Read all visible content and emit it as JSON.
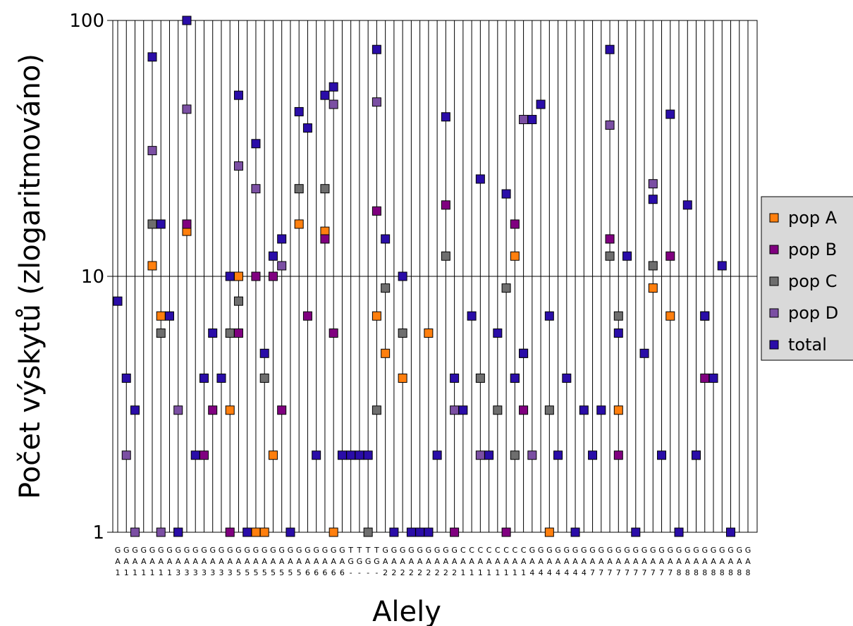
{
  "chart_data": {
    "type": "scatter",
    "title": "",
    "xlabel": "Alely",
    "ylabel": "Počet výskytů (zlogaritmováno)",
    "y_scale": "log",
    "ylim": [
      1,
      100
    ],
    "y_ticks": [
      "1",
      "10",
      "100"
    ],
    "grid": true,
    "legend_position": "right",
    "x_labels": [
      [
        "G",
        "A",
        "1"
      ],
      [
        "G",
        "A",
        "1"
      ],
      [
        "G",
        "A",
        "1"
      ],
      [
        "G",
        "A",
        "1"
      ],
      [
        "G",
        "A",
        "1"
      ],
      [
        "G",
        "A",
        "1"
      ],
      [
        "G",
        "A",
        "1"
      ],
      [
        "G",
        "A",
        "3"
      ],
      [
        "G",
        "A",
        "3"
      ],
      [
        "G",
        "A",
        "3"
      ],
      [
        "G",
        "A",
        "3"
      ],
      [
        "G",
        "A",
        "3"
      ],
      [
        "G",
        "A",
        "3"
      ],
      [
        "G",
        "A",
        "3"
      ],
      [
        "G",
        "A",
        "5"
      ],
      [
        "G",
        "A",
        "5"
      ],
      [
        "G",
        "A",
        "5"
      ],
      [
        "G",
        "A",
        "5"
      ],
      [
        "G",
        "A",
        "5"
      ],
      [
        "G",
        "A",
        "5"
      ],
      [
        "G",
        "A",
        "5"
      ],
      [
        "G",
        "A",
        "5"
      ],
      [
        "G",
        "A",
        "6"
      ],
      [
        "G",
        "A",
        "6"
      ],
      [
        "G",
        "A",
        "6"
      ],
      [
        "G",
        "A",
        "6"
      ],
      [
        "G",
        "A",
        "6"
      ],
      [
        "T",
        "G",
        "-"
      ],
      [
        "T",
        "G",
        "-"
      ],
      [
        "T",
        "G",
        "-"
      ],
      [
        "T",
        "G",
        "-"
      ],
      [
        "G",
        "A",
        "2"
      ],
      [
        "G",
        "A",
        "2"
      ],
      [
        "G",
        "A",
        "2"
      ],
      [
        "G",
        "A",
        "2"
      ],
      [
        "G",
        "A",
        "2"
      ],
      [
        "G",
        "A",
        "2"
      ],
      [
        "G",
        "A",
        "2"
      ],
      [
        "G",
        "A",
        "2"
      ],
      [
        "G",
        "A",
        "2"
      ],
      [
        "C",
        "A",
        "1"
      ],
      [
        "C",
        "A",
        "1"
      ],
      [
        "C",
        "A",
        "1"
      ],
      [
        "C",
        "A",
        "1"
      ],
      [
        "C",
        "A",
        "1"
      ],
      [
        "C",
        "A",
        "1"
      ],
      [
        "C",
        "A",
        "1"
      ],
      [
        "C",
        "A",
        "1"
      ],
      [
        "G",
        "A",
        "4"
      ],
      [
        "G",
        "A",
        "4"
      ],
      [
        "G",
        "A",
        "4"
      ],
      [
        "G",
        "A",
        "4"
      ],
      [
        "G",
        "A",
        "4"
      ],
      [
        "G",
        "A",
        "4"
      ],
      [
        "G",
        "A",
        "4"
      ],
      [
        "G",
        "A",
        "7"
      ],
      [
        "G",
        "A",
        "7"
      ],
      [
        "G",
        "A",
        "7"
      ],
      [
        "G",
        "A",
        "7"
      ],
      [
        "G",
        "A",
        "7"
      ],
      [
        "G",
        "A",
        "7"
      ],
      [
        "G",
        "A",
        "7"
      ],
      [
        "G",
        "A",
        "7"
      ],
      [
        "G",
        "A",
        "7"
      ],
      [
        "G",
        "A",
        "7"
      ],
      [
        "G",
        "A",
        "8"
      ],
      [
        "G",
        "A",
        "8"
      ],
      [
        "G",
        "A",
        "8"
      ],
      [
        "G",
        "A",
        "8"
      ],
      [
        "G",
        "A",
        "8"
      ],
      [
        "G",
        "A",
        "8"
      ],
      [
        "G",
        "A",
        "8"
      ],
      [
        "G",
        "A",
        "8"
      ],
      [
        "G",
        "A",
        "8"
      ]
    ],
    "series": [
      {
        "name": "pop A",
        "color": "#ff7f0e",
        "points": [
          [
            4,
            11
          ],
          [
            5,
            7
          ],
          [
            7,
            1
          ],
          [
            8,
            15
          ],
          [
            13,
            3
          ],
          [
            14,
            10
          ],
          [
            16,
            1
          ],
          [
            17,
            1
          ],
          [
            18,
            2
          ],
          [
            21,
            16
          ],
          [
            24,
            15
          ],
          [
            25,
            1
          ],
          [
            30,
            7
          ],
          [
            31,
            5
          ],
          [
            33,
            4
          ],
          [
            36,
            6
          ],
          [
            46,
            12
          ],
          [
            50,
            1
          ],
          [
            58,
            3
          ],
          [
            62,
            9
          ],
          [
            64,
            7
          ]
        ]
      },
      {
        "name": "pop B",
        "color": "#800080",
        "points": [
          [
            8,
            16
          ],
          [
            10,
            2
          ],
          [
            11,
            3
          ],
          [
            13,
            1
          ],
          [
            14,
            6
          ],
          [
            16,
            10
          ],
          [
            18,
            10
          ],
          [
            19,
            3
          ],
          [
            22,
            7
          ],
          [
            24,
            14
          ],
          [
            25,
            6
          ],
          [
            30,
            18
          ],
          [
            38,
            19
          ],
          [
            39,
            1
          ],
          [
            45,
            1
          ],
          [
            46,
            16
          ],
          [
            47,
            3
          ],
          [
            57,
            14
          ],
          [
            58,
            2
          ],
          [
            64,
            12
          ],
          [
            68,
            4
          ]
        ]
      },
      {
        "name": "pop C",
        "color": "#6e6e6e",
        "points": [
          [
            4,
            16
          ],
          [
            5,
            6
          ],
          [
            13,
            6
          ],
          [
            14,
            8
          ],
          [
            17,
            4
          ],
          [
            21,
            22
          ],
          [
            24,
            22
          ],
          [
            29,
            1
          ],
          [
            30,
            3
          ],
          [
            31,
            9
          ],
          [
            33,
            6
          ],
          [
            36,
            1
          ],
          [
            38,
            12
          ],
          [
            42,
            4
          ],
          [
            44,
            3
          ],
          [
            45,
            9
          ],
          [
            46,
            2
          ],
          [
            47,
            5
          ],
          [
            50,
            3
          ],
          [
            57,
            12
          ],
          [
            58,
            7
          ],
          [
            62,
            11
          ],
          [
            67,
            2
          ],
          [
            68,
            7
          ]
        ]
      },
      {
        "name": "pop D",
        "color": "#7b4fa3",
        "points": [
          [
            1,
            2
          ],
          [
            2,
            1
          ],
          [
            4,
            31
          ],
          [
            5,
            1
          ],
          [
            7,
            3
          ],
          [
            8,
            45
          ],
          [
            14,
            27
          ],
          [
            16,
            22
          ],
          [
            19,
            11
          ],
          [
            25,
            47
          ],
          [
            30,
            48
          ],
          [
            35,
            1
          ],
          [
            39,
            3
          ],
          [
            42,
            2
          ],
          [
            46,
            4
          ],
          [
            47,
            41
          ],
          [
            48,
            2
          ],
          [
            57,
            39
          ],
          [
            62,
            23
          ]
        ]
      },
      {
        "name": "total",
        "color": "#2a0da8",
        "points": [
          [
            0,
            8
          ],
          [
            1,
            4
          ],
          [
            2,
            3
          ],
          [
            4,
            72
          ],
          [
            5,
            16
          ],
          [
            6,
            7
          ],
          [
            7,
            1
          ],
          [
            8,
            100
          ],
          [
            9,
            2
          ],
          [
            10,
            4
          ],
          [
            11,
            6
          ],
          [
            12,
            4
          ],
          [
            13,
            10
          ],
          [
            14,
            51
          ],
          [
            15,
            1
          ],
          [
            16,
            33
          ],
          [
            17,
            5
          ],
          [
            18,
            12
          ],
          [
            19,
            14
          ],
          [
            20,
            1
          ],
          [
            21,
            44
          ],
          [
            22,
            38
          ],
          [
            23,
            2
          ],
          [
            24,
            51
          ],
          [
            25,
            55
          ],
          [
            26,
            2
          ],
          [
            27,
            2
          ],
          [
            28,
            2
          ],
          [
            29,
            2
          ],
          [
            30,
            77
          ],
          [
            31,
            14
          ],
          [
            32,
            1
          ],
          [
            33,
            10
          ],
          [
            34,
            1
          ],
          [
            35,
            1
          ],
          [
            36,
            1
          ],
          [
            37,
            2
          ],
          [
            38,
            42
          ],
          [
            39,
            4
          ],
          [
            40,
            3
          ],
          [
            41,
            7
          ],
          [
            42,
            24
          ],
          [
            43,
            2
          ],
          [
            44,
            6
          ],
          [
            45,
            21
          ],
          [
            46,
            4
          ],
          [
            47,
            5
          ],
          [
            48,
            41
          ],
          [
            49,
            47
          ],
          [
            50,
            7
          ],
          [
            51,
            2
          ],
          [
            52,
            4
          ],
          [
            53,
            1
          ],
          [
            54,
            3
          ],
          [
            55,
            2
          ],
          [
            56,
            3
          ],
          [
            57,
            77
          ],
          [
            58,
            6
          ],
          [
            59,
            12
          ],
          [
            60,
            1
          ],
          [
            61,
            5
          ],
          [
            62,
            20
          ],
          [
            63,
            2
          ],
          [
            64,
            43
          ],
          [
            65,
            1
          ],
          [
            66,
            19
          ],
          [
            67,
            2
          ],
          [
            68,
            7
          ],
          [
            69,
            4
          ],
          [
            70,
            11
          ],
          [
            71,
            1
          ]
        ]
      }
    ]
  }
}
